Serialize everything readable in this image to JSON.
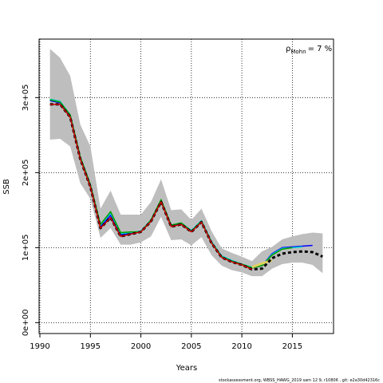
{
  "chart_data": {
    "type": "line",
    "xlabel": "Years",
    "ylabel": "SSB",
    "annotation": {
      "symbol": "ρ",
      "subscript": "Mohn",
      "text": "= 7 %"
    },
    "footer": "stockassessment.org, WBSS_HAWG_2019 sam 12 9, r10806 , git: e2a30d42316c",
    "x": [
      1991,
      1992,
      1993,
      1994,
      1995,
      1996,
      1997,
      1998,
      1999,
      2000,
      2001,
      2002,
      2003,
      2004,
      2005,
      2006,
      2007,
      2008,
      2009,
      2010,
      2011,
      2012,
      2013,
      2014,
      2015,
      2016,
      2017,
      2018
    ],
    "band": {
      "color": "#bebebe",
      "upper": [
        365000,
        353000,
        329000,
        264000,
        235000,
        152000,
        176000,
        144000,
        144000,
        144000,
        161000,
        191000,
        150000,
        151000,
        137000,
        152000,
        122000,
        99000,
        93000,
        88000,
        82000,
        95000,
        101000,
        111000,
        115000,
        118000,
        120000,
        119000
      ],
      "lower": [
        244000,
        245000,
        235000,
        186000,
        165000,
        113000,
        126000,
        104000,
        104000,
        107000,
        115000,
        141000,
        110000,
        111000,
        103000,
        114000,
        90000,
        76000,
        70000,
        67000,
        62000,
        62000,
        72000,
        78000,
        80000,
        80000,
        77000,
        66000
      ]
    },
    "series": [
      {
        "color": "#0000ff",
        "width": 1.5,
        "values": [
          296000,
          293000,
          276000,
          220000,
          183000,
          128000,
          143000,
          117000,
          119000,
          122000,
          136000,
          162000,
          129000,
          132000,
          122000,
          135000,
          107000,
          88000,
          82000,
          78000,
          73000,
          76000,
          92000,
          100000,
          101000,
          102000,
          103000,
          null
        ]
      },
      {
        "color": "#00cdcd",
        "width": 1.5,
        "values": [
          298000,
          295000,
          277000,
          221000,
          184000,
          130000,
          146000,
          119000,
          120000,
          122000,
          137000,
          163000,
          130000,
          133000,
          123000,
          136000,
          108000,
          89000,
          83000,
          78000,
          74000,
          76000,
          91000,
          99000,
          100000,
          101000,
          null,
          null
        ]
      },
      {
        "color": "#00a000",
        "width": 1.5,
        "values": [
          297000,
          294000,
          277000,
          221000,
          184000,
          131000,
          148000,
          120000,
          121000,
          121000,
          137000,
          164000,
          130000,
          133000,
          122000,
          135000,
          107000,
          88000,
          82000,
          78000,
          73000,
          76000,
          90000,
          98000,
          100000,
          null,
          null,
          null
        ]
      },
      {
        "color": "#e0d060",
        "width": 3,
        "values": [
          null,
          null,
          null,
          null,
          null,
          null,
          null,
          null,
          null,
          null,
          null,
          null,
          null,
          null,
          null,
          null,
          null,
          null,
          null,
          null,
          74000,
          79000,
          83000,
          null,
          null,
          null,
          null,
          null
        ]
      },
      {
        "color": "#000000",
        "width": 3,
        "dash": "4 3",
        "values": [
          291000,
          291000,
          274000,
          218000,
          181000,
          126000,
          140000,
          115000,
          118000,
          121000,
          135000,
          161000,
          128000,
          131000,
          121000,
          134000,
          106000,
          87000,
          81000,
          77000,
          71000,
          72000,
          86000,
          92000,
          94000,
          95000,
          94000,
          88000
        ]
      },
      {
        "color": "#cd0000",
        "width": 1.5,
        "values": [
          291000,
          291000,
          274000,
          218000,
          181000,
          126000,
          140000,
          115000,
          118000,
          121000,
          135000,
          161000,
          128000,
          131000,
          121000,
          134000,
          106000,
          87000,
          81000,
          77000,
          71000,
          null,
          null,
          null,
          null,
          null,
          null,
          null
        ]
      }
    ],
    "xlim": [
      1989.92,
      2019.08
    ],
    "xticks": [
      1990,
      1995,
      2000,
      2005,
      2010,
      2015
    ],
    "ylim": [
      -14500,
      378000
    ],
    "yticks": [
      {
        "value": 0,
        "label": "0e+00"
      },
      {
        "value": 100000,
        "label": "1e+05"
      },
      {
        "value": 200000,
        "label": "2e+05"
      },
      {
        "value": 300000,
        "label": "3e+05"
      }
    ],
    "grid": true
  }
}
